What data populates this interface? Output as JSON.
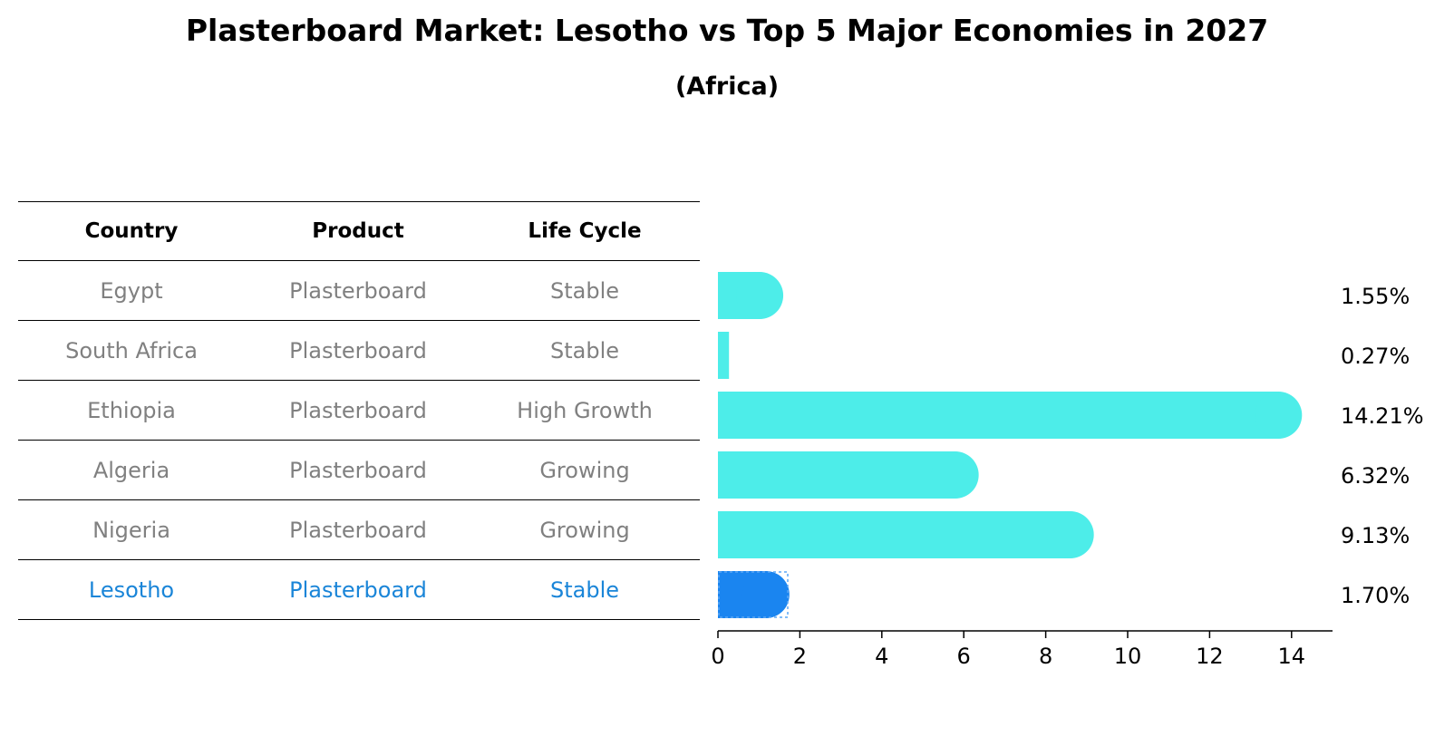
{
  "title": "Plasterboard Market: Lesotho vs Top 5 Major Economies in 2027",
  "subtitle": "(Africa)",
  "table": {
    "headers": [
      "Country",
      "Product",
      "Life Cycle"
    ],
    "rows": [
      [
        "Egypt",
        "Plasterboard",
        "Stable"
      ],
      [
        "South Africa",
        "Plasterboard",
        "Stable"
      ],
      [
        "Ethiopia",
        "Plasterboard",
        "High Growth"
      ],
      [
        "Algeria",
        "Plasterboard",
        "Growing"
      ],
      [
        "Nigeria",
        "Plasterboard",
        "Growing"
      ],
      [
        "Lesotho",
        "Plasterboard",
        "Stable"
      ]
    ],
    "highlight_row": 5
  },
  "colors": {
    "bar": "#4dede9",
    "highlight_bar": "#1a85f0",
    "highlight_text": "#1a85d8",
    "muted_text": "#808080"
  },
  "chart_data": {
    "type": "bar",
    "orientation": "horizontal",
    "categories": [
      "Egypt",
      "South Africa",
      "Ethiopia",
      "Algeria",
      "Nigeria",
      "Lesotho"
    ],
    "values": [
      1.55,
      0.27,
      14.21,
      6.32,
      9.13,
      1.7
    ],
    "value_labels": [
      "1.55%",
      "0.27%",
      "14.21%",
      "6.32%",
      "9.13%",
      "1.70%"
    ],
    "xticks": [
      0,
      2,
      4,
      6,
      8,
      10,
      12,
      14
    ],
    "xlim": [
      0,
      15
    ],
    "highlight_index": 5,
    "xlabel": "",
    "ylabel": ""
  }
}
